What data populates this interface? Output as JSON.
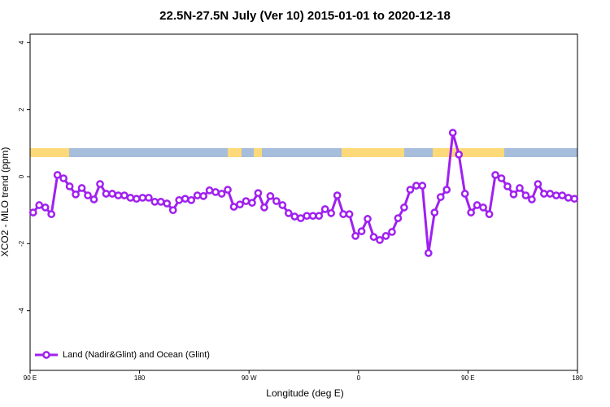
{
  "chart_data": {
    "type": "line",
    "title": "22.5N-27.5N July (Ver 10)   2015-01-01 to 2020-12-18",
    "x_label": "Longitude (deg E)",
    "y_label": "XCO2 - MLO trend (ppm)",
    "x": [
      92.5,
      97.5,
      102.5,
      107.5,
      112.5,
      117.5,
      122.5,
      127.5,
      132.5,
      137.5,
      142.5,
      147.5,
      152.5,
      157.5,
      162.5,
      167.5,
      172.5,
      177.5,
      182.5,
      187.5,
      192.5,
      197.5,
      202.5,
      207.5,
      212.5,
      217.5,
      222.5,
      227.5,
      232.5,
      237.5,
      242.5,
      247.5,
      252.5,
      257.5,
      262.5,
      267.5,
      272.5,
      277.5,
      282.5,
      287.5,
      292.5,
      297.5,
      302.5,
      307.5,
      312.5,
      317.5,
      322.5,
      327.5,
      332.5,
      337.5,
      342.5,
      347.5,
      352.5,
      357.5,
      362.5,
      367.5,
      372.5,
      377.5,
      382.5,
      387.5,
      392.5,
      397.5,
      402.5,
      407.5,
      412.5,
      417.5,
      422.5,
      427.5,
      432.5,
      437.5,
      442.5,
      447.5,
      452.5,
      457.5,
      462.5,
      467.5,
      472.5,
      477.5,
      482.5,
      487.5,
      492.5,
      497.5,
      502.5,
      507.5,
      512.5,
      517.5,
      522.5,
      527.5,
      532.5,
      537.5
    ],
    "series": [
      {
        "name": "Land (Nadir&Glint) and Ocean (Glint)",
        "color": "#a020f0",
        "values": [
          -1.07,
          -0.85,
          -0.92,
          -1.12,
          0.05,
          -0.05,
          -0.29,
          -0.53,
          -0.34,
          -0.56,
          -0.68,
          -0.22,
          -0.51,
          -0.51,
          -0.56,
          -0.56,
          -0.63,
          -0.66,
          -0.63,
          -0.63,
          -0.75,
          -0.75,
          -0.8,
          -1.0,
          -0.7,
          -0.66,
          -0.7,
          -0.56,
          -0.58,
          -0.41,
          -0.46,
          -0.51,
          -0.39,
          -0.9,
          -0.83,
          -0.73,
          -0.78,
          -0.49,
          -0.92,
          -0.58,
          -0.73,
          -0.85,
          -1.09,
          -1.19,
          -1.24,
          -1.17,
          -1.17,
          -1.17,
          -0.97,
          -1.09,
          -0.56,
          -1.12,
          -1.12,
          -1.77,
          -1.63,
          -1.26,
          -1.8,
          -1.89,
          -1.77,
          -1.65,
          -1.24,
          -0.92,
          -0.39,
          -0.27,
          -0.27,
          -2.28,
          -1.07,
          -0.61,
          -0.39,
          1.31,
          0.66,
          -0.51,
          -1.07,
          -0.85,
          -0.92,
          -1.12,
          0.05,
          -0.05,
          -0.29,
          -0.53,
          -0.34,
          -0.56,
          -0.68,
          -0.22,
          -0.51,
          -0.51,
          -0.56,
          -0.56,
          -0.63,
          -0.66
        ]
      }
    ],
    "xlim": [
      90,
      540
    ],
    "xticks": [
      {
        "value": 90,
        "label": "90 E"
      },
      {
        "value": 180,
        "label": "180"
      },
      {
        "value": 270,
        "label": "90 W"
      },
      {
        "value": 360,
        "label": "0"
      },
      {
        "value": 450,
        "label": "90 E"
      },
      {
        "value": 540,
        "label": "180"
      }
    ],
    "ylim": [
      -5.78,
      4.25
    ],
    "yticks": [
      4,
      2,
      0,
      -2,
      -4
    ],
    "legend_position": "bottom-left"
  }
}
